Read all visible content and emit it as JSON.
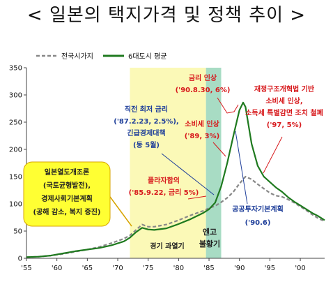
{
  "page_title": "< 일본의 택지가격 및 정책 추이 >",
  "chart_data": {
    "type": "line",
    "title": "< 일본의 택지가격 및 정책 추이 >",
    "xlabel": "",
    "ylabel": "",
    "xlim": [
      1955,
      2004
    ],
    "ylim": [
      0,
      350
    ],
    "y_ticks": [
      0,
      50,
      100,
      150,
      200,
      250,
      300,
      350
    ],
    "x_ticks": [
      1955,
      1960,
      1965,
      1970,
      1975,
      1980,
      1985,
      1990,
      1995,
      2000
    ],
    "x_tick_labels": [
      "'55",
      "'60",
      "'65",
      "'70",
      "'75",
      "'80",
      "'85",
      "'90",
      "'95",
      "'00"
    ],
    "grid": false,
    "legend_position": "top-left",
    "series": [
      {
        "name": "전국시가지",
        "color": "#888888",
        "style": "dashed",
        "x": [
          1955,
          1957,
          1959,
          1961,
          1963,
          1965,
          1967,
          1969,
          1971,
          1972,
          1973,
          1974,
          1975,
          1976,
          1978,
          1980,
          1982,
          1984,
          1985,
          1986,
          1987,
          1988,
          1989,
          1990,
          1991,
          1992,
          1993,
          1994,
          1995,
          1996,
          1997,
          1998,
          1999,
          2000,
          2001,
          2002,
          2003,
          2004
        ],
        "y": [
          2,
          3,
          5,
          8,
          12,
          16,
          21,
          28,
          36,
          42,
          52,
          62,
          58,
          58,
          62,
          70,
          79,
          87,
          92,
          96,
          103,
          111,
          122,
          137,
          150,
          145,
          136,
          128,
          120,
          115,
          113,
          108,
          102,
          95,
          88,
          80,
          73,
          68
        ]
      },
      {
        "name": "6대도시 평균",
        "color": "#1f7a1f",
        "style": "solid",
        "x": [
          1955,
          1957,
          1959,
          1961,
          1963,
          1965,
          1967,
          1969,
          1971,
          1972,
          1973,
          1974,
          1975,
          1976,
          1978,
          1980,
          1982,
          1984,
          1985,
          1986,
          1987,
          1988,
          1989,
          1990,
          1990.6,
          1991,
          1992,
          1993,
          1994,
          1995,
          1996,
          1997,
          1998,
          1999,
          2000,
          2001,
          2002,
          2003,
          2004
        ],
        "y": [
          2,
          3,
          5,
          9,
          13,
          16,
          19,
          24,
          31,
          38,
          48,
          56,
          53,
          52,
          55,
          63,
          72,
          83,
          90,
          102,
          132,
          175,
          225,
          272,
          286,
          278,
          210,
          170,
          150,
          140,
          130,
          122,
          112,
          104,
          97,
          90,
          83,
          77,
          70
        ]
      }
    ],
    "shaded_regions": [
      {
        "label": "경기 과열기",
        "from": 1972,
        "to": 1984.5,
        "color": "#fbf9b7"
      },
      {
        "label": "엔고 불황기",
        "from": 1984.5,
        "to": 1987,
        "color": "#a8dcc4"
      }
    ],
    "annotations": [
      {
        "text": "일본열도개조론\n(국토균형발전),\n경제사회기본계획\n(공해 감소, 복지 증진)",
        "color": "#d7191c"
      },
      {
        "text": "직전 최저 금리\n('87.2.23, 2.5%),\n긴급경제대책\n(동 5월)",
        "color": "#1f3f9a"
      },
      {
        "text": "플라자합의\n('85.9.22, 금리 5%)",
        "color": "#d7191c"
      },
      {
        "text": "금리 인상\n('90.8.30, 6%)",
        "color": "#d7191c"
      },
      {
        "text": "소비세 인상\n('89, 3%)",
        "color": "#d7191c"
      },
      {
        "text": "재정구조개혁법 기반\n소비세 인상,\n소득세 특별감면 조치 철폐\n('97, 5%)",
        "color": "#d7191c"
      },
      {
        "text": "공공투자기본계획\n('90.6)",
        "color": "#1f3f9a"
      }
    ]
  },
  "labels": {
    "boom_period": "경기 과열기",
    "recession_line1": "엔고",
    "recession_line2": "불황기"
  }
}
